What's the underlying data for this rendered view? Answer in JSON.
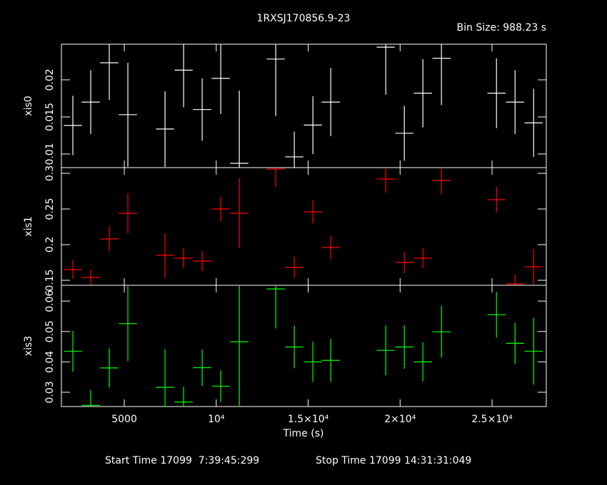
{
  "title": "1RXSJ170856.9-23",
  "annotation": "Bin Size: 988.23 s",
  "xlabel": "Time (s)",
  "footer": {
    "start": "Start Time 17099  7:39:45:299",
    "stop": "Stop Time 17099 14:31:31:049"
  },
  "chart_data": [
    {
      "type": "errorbar",
      "ylabel": "xis0",
      "color": "#ffffff",
      "x": [
        2203,
        3174,
        4184,
        5194,
        7214,
        8225,
        9235,
        10245,
        11255,
        13236,
        14246,
        15256,
        16227,
        19219,
        20229,
        21239,
        22249,
        25240,
        26250,
        27261
      ],
      "xerr": 494.115,
      "values": [
        0.01385,
        0.017,
        0.0223,
        0.0153,
        0.01337,
        0.0213,
        0.016,
        0.0202,
        0.00875,
        0.0228,
        0.00962,
        0.0139,
        0.017,
        0.0244,
        0.0128,
        0.0182,
        0.0229,
        0.0182,
        0.017,
        0.0142
      ],
      "yerr": [
        0.004,
        0.0043,
        0.005,
        0.007,
        0.0051,
        0.005,
        0.0042,
        0.0048,
        0.0098,
        0.0077,
        0.0034,
        0.0039,
        0.0046,
        0.0064,
        0.0037,
        0.0046,
        0.0063,
        0.0047,
        0.0043,
        0.0046
      ],
      "ylim": [
        0.00817,
        0.0248
      ],
      "yticks": [
        0.01,
        0.015,
        0.02
      ]
    },
    {
      "type": "errorbar",
      "ylabel": "xis1",
      "color": "#ff0000",
      "x": [
        2203,
        3174,
        4184,
        5194,
        7214,
        8225,
        9235,
        10245,
        11255,
        13236,
        14246,
        15256,
        16227,
        19219,
        20229,
        21239,
        22249,
        25240,
        26250,
        27261
      ],
      "xerr": 494.115,
      "values": [
        0.165,
        0.154,
        0.208,
        0.244,
        0.185,
        0.181,
        0.177,
        0.25,
        0.244,
        0.306,
        0.168,
        0.246,
        0.196,
        0.292,
        0.175,
        0.181,
        0.29,
        0.263,
        0.145,
        0.169
      ],
      "yerr": [
        0.013,
        0.011,
        0.017,
        0.028,
        0.031,
        0.014,
        0.014,
        0.017,
        0.049,
        0.025,
        0.015,
        0.016,
        0.016,
        0.019,
        0.015,
        0.014,
        0.019,
        0.018,
        0.013,
        0.025
      ],
      "ylim": [
        0.143,
        0.308
      ],
      "yticks": [
        0.15,
        0.2,
        0.25,
        0.3
      ]
    },
    {
      "type": "errorbar",
      "ylabel": "xis3",
      "color": "#00ff00",
      "x": [
        2203,
        3174,
        4184,
        5194,
        7214,
        8225,
        9235,
        10245,
        11255,
        13236,
        14246,
        15256,
        16227,
        19219,
        20229,
        21239,
        22249,
        25240,
        26250,
        27261
      ],
      "xerr": 494.115,
      "values": [
        0.0435,
        0.0257,
        0.038,
        0.0526,
        0.0316,
        0.0268,
        0.0381,
        0.032,
        0.0466,
        0.064,
        0.0449,
        0.04,
        0.0405,
        0.0438,
        0.0449,
        0.04,
        0.0499,
        0.0555,
        0.0461,
        0.0435
      ],
      "yerr": [
        0.0067,
        0.005,
        0.0064,
        0.0124,
        0.0125,
        0.005,
        0.006,
        0.0052,
        0.021,
        0.013,
        0.007,
        0.0066,
        0.0071,
        0.0082,
        0.0072,
        0.0064,
        0.0085,
        0.0075,
        0.0068,
        0.011
      ],
      "ylim": [
        0.0253,
        0.0652
      ],
      "yticks": [
        0.03,
        0.04,
        0.05,
        0.06
      ],
      "xlim": [
        1580,
        27950
      ],
      "xticks": [
        5000,
        {
          "value": 10000,
          "label": "10⁴"
        },
        {
          "value": 15000,
          "label": "1.5×10⁴"
        },
        {
          "value": 20000,
          "label": "2×10⁴"
        },
        {
          "value": 25000,
          "label": "2.5×10⁴"
        }
      ]
    }
  ]
}
